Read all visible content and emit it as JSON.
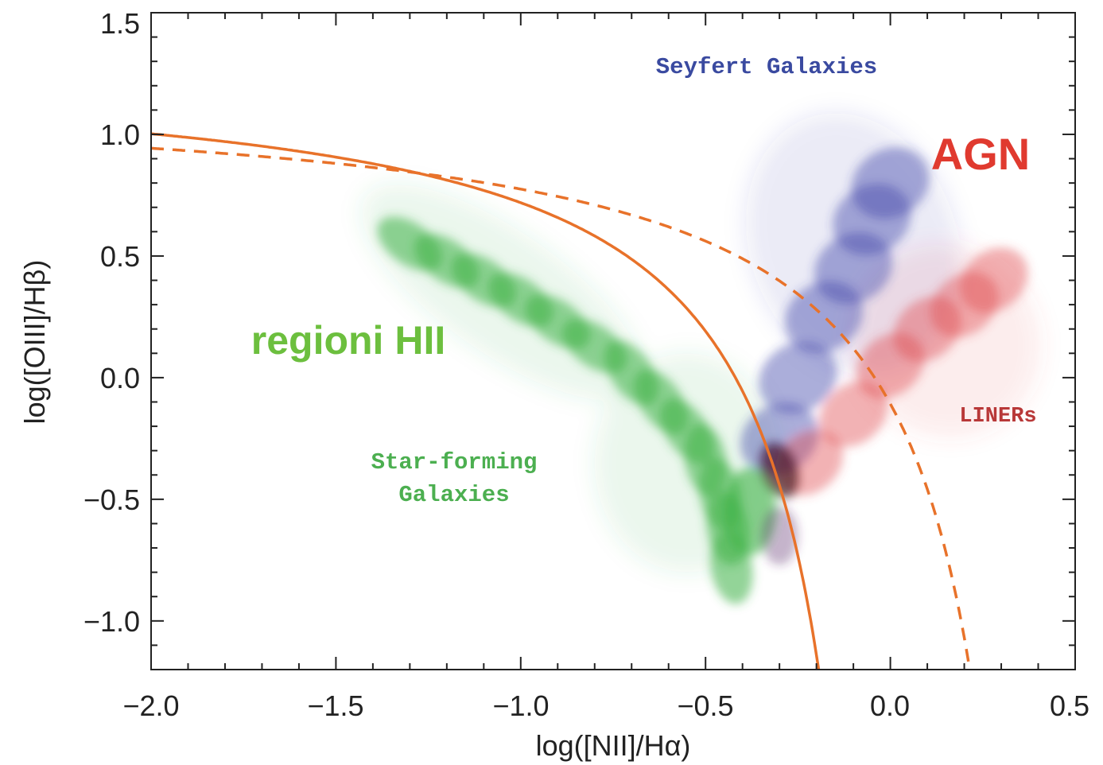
{
  "chart_data": {
    "type": "scatter",
    "title": "",
    "xlabel": "log([NII]/Hα)",
    "ylabel": "log([OIII]/Hβ)",
    "xlim": [
      -2.0,
      0.5
    ],
    "ylim": [
      -1.2,
      1.5
    ],
    "x_ticks": [
      -2.0,
      -1.5,
      -1.0,
      -0.5,
      0.0,
      0.5
    ],
    "x_tick_labels": [
      "−2.0",
      "−1.5",
      "−1.0",
      "−0.5",
      "0.0",
      "0.5"
    ],
    "y_ticks": [
      -1.0,
      -0.5,
      0.0,
      0.5,
      1.0,
      1.5
    ],
    "y_tick_labels": [
      "−1.0",
      "−0.5",
      "0.0",
      "0.5",
      "1.0",
      "1.5"
    ],
    "grid": false,
    "annotations": {
      "seyfert": "Seyfert Galaxies",
      "agn": "AGN",
      "hii": "regioni HII",
      "star_forming_1": "Star-forming",
      "star_forming_2": "Galaxies",
      "liners": "LINERs"
    },
    "colors": {
      "star_forming": "#3cb043",
      "seyfert": "#3a3ea8",
      "liner": "#e0474c",
      "agn_label": "#e03a2f",
      "seyfert_label": "#3a4aa0",
      "liner_label": "#b83838",
      "hii_label": "#6cbf3e",
      "curves": "#e8722a"
    },
    "curves": [
      {
        "style": "solid",
        "equation": "y = 0.61/(x - 0.05) + 1.3"
      },
      {
        "style": "dashed",
        "equation": "y = 0.61/(x - 0.47) + 1.19"
      }
    ],
    "populations": [
      {
        "name": "Star-forming Galaxies",
        "color": "green",
        "x_range": [
          -1.6,
          -0.25
        ],
        "y_range": [
          -1.0,
          0.8
        ]
      },
      {
        "name": "Seyfert Galaxies",
        "color": "blue",
        "x_range": [
          -0.4,
          0.2
        ],
        "y_range": [
          -0.6,
          1.0
        ]
      },
      {
        "name": "LINERs",
        "color": "red",
        "x_range": [
          -0.3,
          0.4
        ],
        "y_range": [
          -0.7,
          0.6
        ]
      }
    ]
  }
}
